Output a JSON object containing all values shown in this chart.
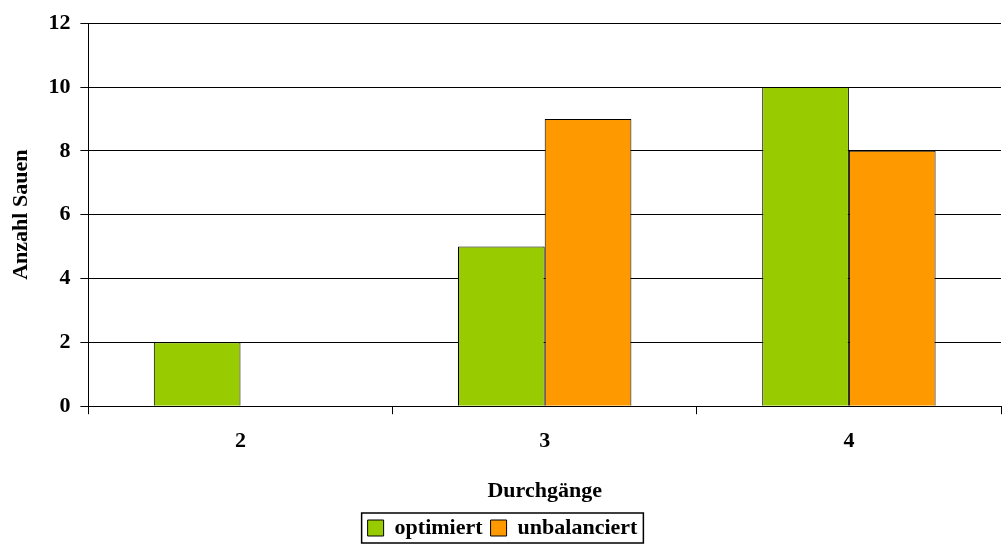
{
  "chart_data": {
    "type": "bar",
    "xlabel": "Durchgänge",
    "ylabel": "Anzahl Sauen",
    "categories": [
      "2",
      "3",
      "4"
    ],
    "series": [
      {
        "name": "optimiert",
        "color": "#99cc00",
        "values": [
          2,
          5,
          10
        ]
      },
      {
        "name": "unbalanciert",
        "color": "#ff9900",
        "values": [
          0,
          9,
          8
        ]
      }
    ],
    "ylim": [
      0,
      12
    ],
    "yticks": [
      0,
      2,
      4,
      6,
      8,
      10,
      12
    ],
    "grid": "y",
    "legend": "bottom"
  }
}
